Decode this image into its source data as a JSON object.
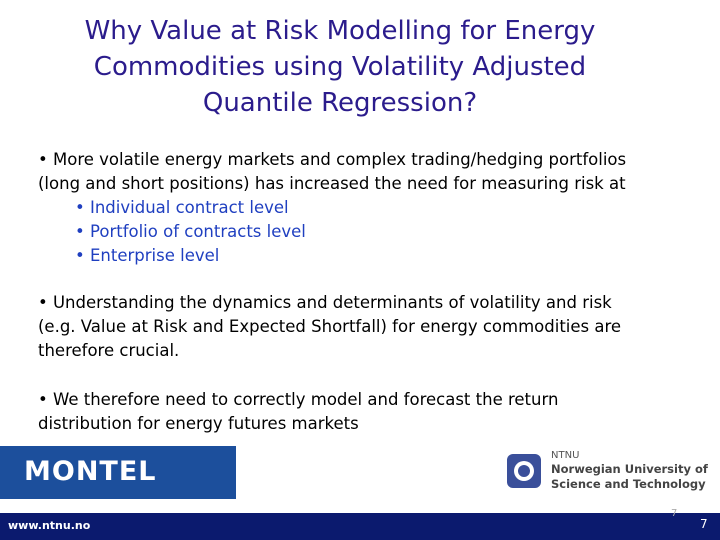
{
  "title_lines": [
    "Why Value at Risk Modelling for Energy",
    "Commodities using Volatility Adjusted",
    "Quantile Regression?"
  ],
  "bullets": [
    {
      "lines": [
        "More volatile energy markets and complex trading/hedging portfolios",
        "(long and short positions) has increased the need for measuring risk at"
      ],
      "subitems": [
        "Individual contract level",
        "Portfolio of contracts level",
        "Enterprise level"
      ]
    },
    {
      "lines": [
        "Understanding the dynamics and determinants of volatility and risk",
        "(e.g. Value at Risk and Expected Shortfall) for energy commodities are",
        "therefore crucial."
      ]
    },
    {
      "lines": [
        "We therefore need to correctly model and forecast the return",
        "distribution for energy futures markets"
      ]
    }
  ],
  "logos": {
    "montel": "MONTEL",
    "ntnu": {
      "name": "NTNU",
      "line1": "Norwegian University of",
      "line2": "Science and Technology"
    }
  },
  "footer": {
    "url": "www.ntnu.no",
    "page_number_faint": "7",
    "page_number": "7"
  }
}
